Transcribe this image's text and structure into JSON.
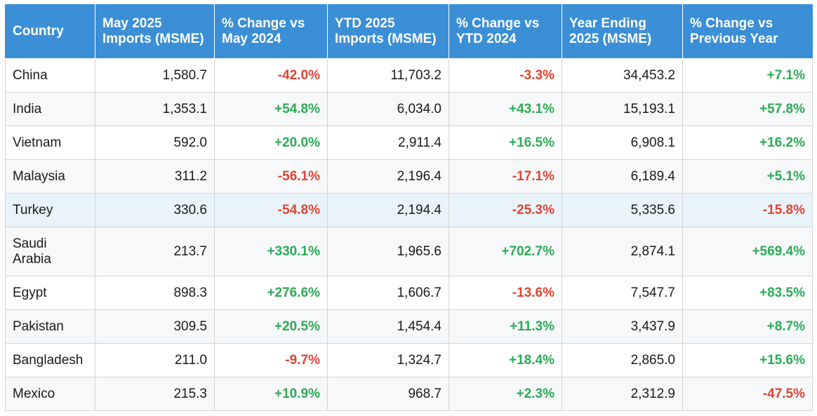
{
  "chart_data": {
    "type": "table",
    "colors": {
      "header_bg": "#3a8fd6",
      "positive": "#2bab55",
      "negative": "#e04433",
      "highlight_row": "#e9f4fa"
    },
    "headers": [
      "Country",
      "May 2025 Imports (MSME)",
      "% Change vs May 2024",
      "YTD 2025 Imports (MSME)",
      "% Change vs YTD 2024",
      "Year Ending 2025 (MSME)",
      "% Change vs Previous Year"
    ],
    "highlighted_country": "Turkey",
    "rows": [
      {
        "country": "China",
        "may": "1,580.7",
        "may_chg": "-42.0%",
        "ytd": "11,703.2",
        "ytd_chg": "-3.3%",
        "ye": "34,453.2",
        "ye_chg": "+7.1%"
      },
      {
        "country": "India",
        "may": "1,353.1",
        "may_chg": "+54.8%",
        "ytd": "6,034.0",
        "ytd_chg": "+43.1%",
        "ye": "15,193.1",
        "ye_chg": "+57.8%"
      },
      {
        "country": "Vietnam",
        "may": "592.0",
        "may_chg": "+20.0%",
        "ytd": "2,911.4",
        "ytd_chg": "+16.5%",
        "ye": "6,908.1",
        "ye_chg": "+16.2%"
      },
      {
        "country": "Malaysia",
        "may": "311.2",
        "may_chg": "-56.1%",
        "ytd": "2,196.4",
        "ytd_chg": "-17.1%",
        "ye": "6,189.4",
        "ye_chg": "+5.1%"
      },
      {
        "country": "Turkey",
        "may": "330.6",
        "may_chg": "-54.8%",
        "ytd": "2,194.4",
        "ytd_chg": "-25.3%",
        "ye": "5,335.6",
        "ye_chg": "-15.8%"
      },
      {
        "country": "Saudi Arabia",
        "may": "213.7",
        "may_chg": "+330.1%",
        "ytd": "1,965.6",
        "ytd_chg": "+702.7%",
        "ye": "2,874.1",
        "ye_chg": "+569.4%"
      },
      {
        "country": "Egypt",
        "may": "898.3",
        "may_chg": "+276.6%",
        "ytd": "1,606.7",
        "ytd_chg": "-13.6%",
        "ye": "7,547.7",
        "ye_chg": "+83.5%"
      },
      {
        "country": "Pakistan",
        "may": "309.5",
        "may_chg": "+20.5%",
        "ytd": "1,454.4",
        "ytd_chg": "+11.3%",
        "ye": "3,437.9",
        "ye_chg": "+8.7%"
      },
      {
        "country": "Bangladesh",
        "may": "211.0",
        "may_chg": "-9.7%",
        "ytd": "1,324.7",
        "ytd_chg": "+18.4%",
        "ye": "2,865.0",
        "ye_chg": "+15.6%"
      },
      {
        "country": "Mexico",
        "may": "215.3",
        "may_chg": "+10.9%",
        "ytd": "968.7",
        "ytd_chg": "+2.3%",
        "ye": "2,312.9",
        "ye_chg": "-47.5%"
      }
    ]
  }
}
